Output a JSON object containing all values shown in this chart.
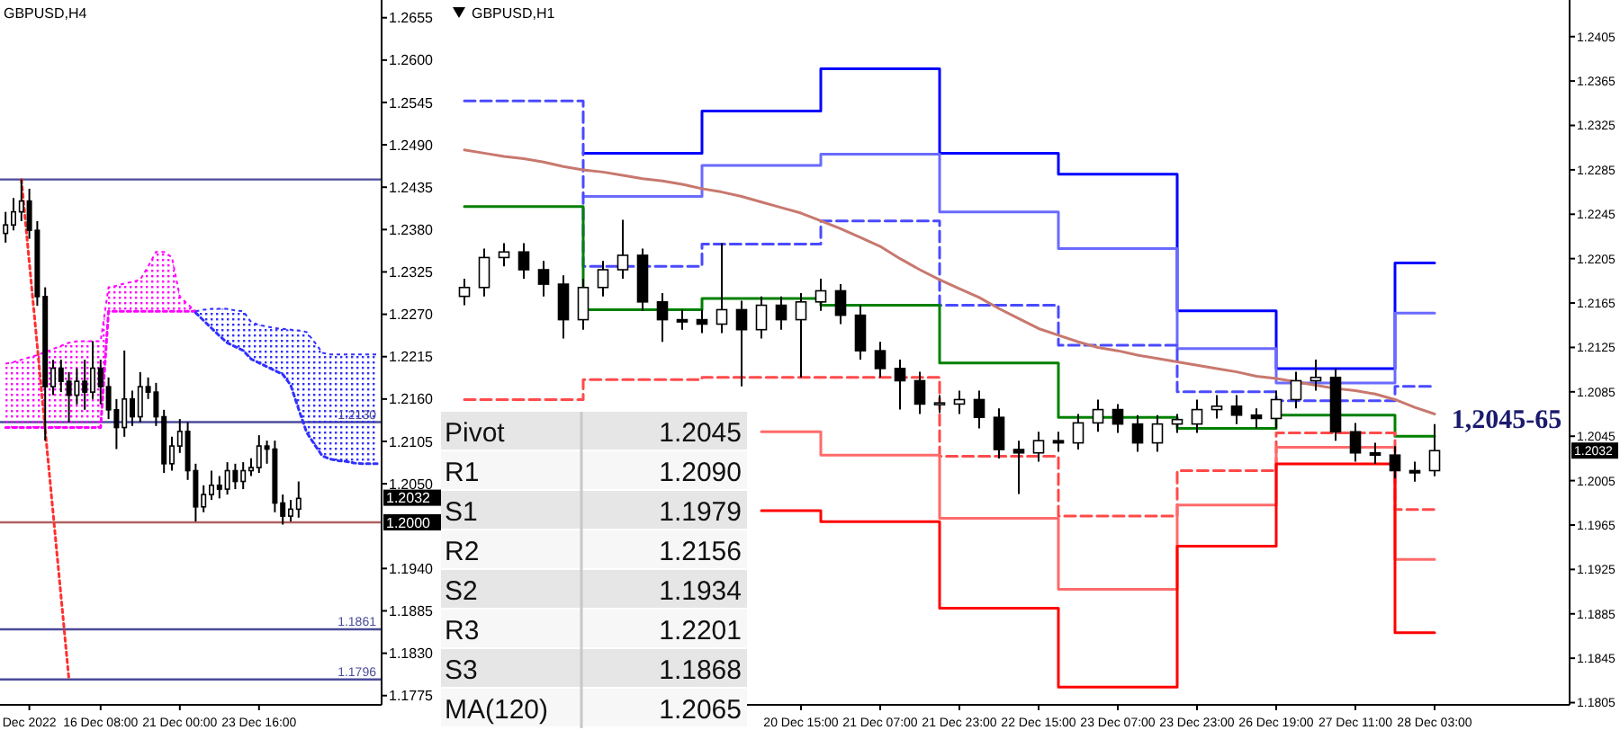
{
  "chart_data": [
    {
      "type": "candlestick",
      "title": "GBPUSD,H4",
      "ylim": [
        1.1763,
        1.2678
      ],
      "categories": [
        null,
        null,
        null,
        "Dec 2022",
        null,
        null,
        null,
        null,
        null,
        null,
        null,
        null,
        "16 Dec 08:00",
        null,
        null,
        null,
        null,
        null,
        null,
        null,
        null,
        null,
        "21 Dec 00:00",
        null,
        null,
        null,
        null,
        null,
        null,
        null,
        null,
        null,
        "23 Dec 16:00",
        null,
        null,
        null,
        null,
        null,
        null,
        null,
        null,
        null,
        null,
        null,
        null,
        null,
        null,
        null
      ],
      "yticks": [
        1.2655,
        {
          "value": 1.26,
          "label": "1.2600"
        },
        1.2545,
        {
          "value": 1.249,
          "label": "1.2490"
        },
        1.2435,
        {
          "value": 1.238,
          "label": "1.2380"
        },
        1.2325,
        {
          "value": 1.227,
          "label": "1.2270"
        },
        1.2215,
        {
          "value": 1.216,
          "label": "1.2160"
        },
        1.2105,
        {
          "value": 1.205,
          "label": "1.2050"
        },
        {
          "value": 1.194,
          "label": "1.1940"
        },
        1.1885,
        {
          "value": 1.183,
          "label": "1.1830"
        },
        1.1775
      ],
      "ohlc": [
        [
          1.2375,
          1.2403,
          1.2363,
          1.2386
        ],
        [
          1.2386,
          1.2421,
          1.2379,
          1.2403
        ],
        [
          1.2403,
          1.2445,
          1.2391,
          1.2417
        ],
        [
          1.2417,
          1.2433,
          1.2368,
          1.2379
        ],
        [
          1.2379,
          1.2391,
          1.2281,
          1.2293
        ],
        [
          1.2293,
          1.2305,
          1.2106,
          1.2176
        ],
        [
          1.2176,
          1.2211,
          1.2165,
          1.22
        ],
        [
          1.22,
          1.2211,
          1.2169,
          1.2183
        ],
        [
          1.2183,
          1.2195,
          1.213,
          1.2165
        ],
        [
          1.2165,
          1.22,
          1.2153,
          1.2183
        ],
        [
          1.2183,
          1.2211,
          1.2146,
          1.2169
        ],
        [
          1.2169,
          1.2235,
          1.216,
          1.22
        ],
        [
          1.22,
          1.2211,
          1.2153,
          1.2176
        ],
        [
          1.2176,
          1.2188,
          1.2134,
          1.2146
        ],
        [
          1.2146,
          1.216,
          1.2095,
          1.2123
        ],
        [
          1.2123,
          1.2223,
          1.2111,
          1.216
        ],
        [
          1.216,
          1.2171,
          1.2125,
          1.2137
        ],
        [
          1.2137,
          1.2195,
          1.213,
          1.2176
        ],
        [
          1.2176,
          1.2188,
          1.216,
          1.2169
        ],
        [
          1.2169,
          1.2181,
          1.2125,
          1.2137
        ],
        [
          1.2137,
          1.2146,
          1.2064,
          1.2076
        ],
        [
          1.2076,
          1.2111,
          1.2067,
          1.2099
        ],
        [
          1.2099,
          1.2134,
          1.209,
          1.2118
        ],
        [
          1.2118,
          1.213,
          1.2055,
          1.2067
        ],
        [
          1.2067,
          1.2076,
          1.2001,
          1.202
        ],
        [
          1.202,
          1.2048,
          1.2013,
          1.2036
        ],
        [
          1.2036,
          1.2067,
          1.2029,
          1.2048
        ],
        [
          1.2048,
          1.206,
          1.2031,
          1.2043
        ],
        [
          1.2043,
          1.2078,
          1.2036,
          1.2067
        ],
        [
          1.2067,
          1.2076,
          1.2043,
          1.2053
        ],
        [
          1.2053,
          1.2078,
          1.2043,
          1.2067
        ],
        [
          1.2067,
          1.2083,
          1.206,
          1.2071
        ],
        [
          1.2071,
          1.2113,
          1.2064,
          1.2099
        ],
        [
          1.2099,
          1.2106,
          1.2076,
          1.2095
        ],
        [
          1.2095,
          1.2106,
          1.2013,
          1.2025
        ],
        [
          1.2025,
          1.2036,
          1.1997,
          1.2008
        ],
        [
          1.2008,
          1.2029,
          1.2001,
          1.2017
        ],
        [
          1.2017,
          1.2053,
          1.2006,
          1.2031
        ],
        null,
        null,
        null,
        null,
        null,
        null,
        null,
        null,
        null,
        null
      ],
      "series": [
        {
          "type": "area",
          "color": "#ff00ff",
          "line_style": "dotted",
          "values": [
            1.2206,
            1.2208,
            1.2211,
            1.2214,
            1.2217,
            1.2221,
            1.2225,
            1.2229,
            1.2233,
            1.2235,
            1.2235,
            1.2235,
            1.2235,
            1.2305,
            1.2307,
            1.231,
            1.2312,
            1.2315,
            1.2332,
            1.2351,
            1.2351,
            1.2344,
            1.2293,
            1.2283,
            1.2274,
            null,
            null,
            null,
            null,
            null,
            null,
            null,
            null,
            null,
            null,
            null,
            null,
            null,
            null,
            null,
            null,
            null,
            null,
            null,
            null,
            null,
            null,
            null
          ]
        },
        {
          "type": "line",
          "color": "#ff00ff",
          "line_style": "dotted",
          "values": [
            1.2123,
            1.2123,
            1.2123,
            1.2123,
            1.2123,
            1.2123,
            1.2123,
            1.2123,
            1.2123,
            1.2123,
            1.2123,
            1.2123,
            1.2123,
            1.2274,
            1.2274,
            1.2274,
            1.2274,
            1.2274,
            1.2274,
            1.2274,
            1.2274,
            1.2274,
            1.2274,
            1.2274,
            1.2274,
            null,
            null,
            null,
            null,
            null,
            null,
            null,
            null,
            null,
            null,
            null,
            null,
            null,
            null,
            null,
            null,
            null,
            null,
            null,
            null,
            null,
            null,
            null
          ]
        },
        {
          "type": "area",
          "color": "#3030ff",
          "line_style": "dotted",
          "values": [
            null,
            null,
            null,
            null,
            null,
            null,
            null,
            null,
            null,
            null,
            null,
            null,
            null,
            null,
            null,
            null,
            null,
            null,
            null,
            null,
            null,
            null,
            null,
            null,
            1.2274,
            1.2276,
            1.2277,
            1.2277,
            1.2277,
            1.2275,
            1.2274,
            1.226,
            1.2256,
            1.2254,
            1.2252,
            1.2251,
            1.225,
            1.2249,
            1.2247,
            1.2234,
            1.222,
            1.2218,
            1.2218,
            1.2218,
            1.2218,
            1.2218,
            1.2218,
            1.2218
          ]
        },
        {
          "type": "line",
          "color": "#3030ff",
          "line_style": "dotted",
          "values": [
            null,
            null,
            null,
            null,
            null,
            null,
            null,
            null,
            null,
            null,
            null,
            null,
            null,
            null,
            null,
            null,
            null,
            null,
            null,
            null,
            null,
            null,
            null,
            null,
            1.2272,
            1.2262,
            1.2252,
            1.2242,
            1.2233,
            1.2228,
            1.2223,
            1.2212,
            1.2207,
            1.2202,
            1.2197,
            1.2192,
            1.2178,
            1.2147,
            1.2117,
            1.2101,
            1.2086,
            1.2082,
            1.208,
            1.2079,
            1.2077,
            1.2076,
            1.2076,
            1.2076
          ]
        },
        {
          "type": "line",
          "color": "#ff3030",
          "line_style": "dotted",
          "values": [
            null,
            null,
            1.2445,
            1.2337,
            1.2229,
            1.212,
            1.2012,
            1.1904,
            1.1796,
            null,
            null,
            null,
            null,
            null,
            null,
            null,
            null,
            null,
            null,
            null,
            null,
            null,
            null,
            null,
            null,
            null,
            null,
            null,
            null,
            null,
            null,
            null,
            null,
            null,
            null,
            null,
            null,
            null,
            null,
            null,
            null,
            null,
            null,
            null,
            null,
            null,
            null,
            null
          ]
        }
      ],
      "ref_lines": [
        {
          "axis": "y",
          "value": 1.2445,
          "color": "#4b4b9a"
        },
        {
          "axis": "y",
          "value": 1.213,
          "label": "1.2130",
          "color": "#4b4b9a"
        },
        {
          "axis": "y",
          "value": 1.2,
          "color": "#b06060"
        },
        {
          "axis": "y",
          "value": 1.1861,
          "label": "1.1861",
          "color": "#4b4b9a"
        },
        {
          "axis": "y",
          "value": 1.1796,
          "label": "1.1796",
          "color": "#4b4b9a"
        }
      ],
      "annotations": [
        "1.2032",
        "1.2000"
      ]
    },
    {
      "type": "candlestick",
      "title": "GBPUSD,H1",
      "ylim": [
        1.1803,
        1.2438
      ],
      "categories": [
        null,
        null,
        null,
        null,
        null,
        null,
        null,
        null,
        null,
        null,
        null,
        null,
        null,
        null,
        null,
        null,
        null,
        "20 Dec 15:00",
        null,
        null,
        null,
        "21 Dec 07:00",
        null,
        null,
        null,
        "21 Dec 23:00",
        null,
        null,
        null,
        "22 Dec 15:00",
        null,
        null,
        null,
        "23 Dec 07:00",
        null,
        null,
        null,
        "23 Dec 23:00",
        null,
        null,
        null,
        "26 Dec 19:00",
        null,
        null,
        null,
        "27 Dec 11:00",
        null,
        null,
        null,
        "28 Dec 03:00"
      ],
      "yticks": [
        1.2405,
        1.2365,
        1.2325,
        1.2285,
        1.2245,
        1.2205,
        1.2165,
        1.2125,
        1.2085,
        1.2045,
        1.2005,
        1.1965,
        1.1925,
        1.1885,
        1.1845,
        1.1805
      ],
      "ohlc": [
        [
          1.2171,
          1.2187,
          1.2163,
          1.2179
        ],
        [
          1.2179,
          1.2214,
          1.2171,
          1.2206
        ],
        [
          1.2206,
          1.2219,
          1.2198,
          1.2211
        ],
        [
          1.2211,
          1.2219,
          1.2187,
          1.2195
        ],
        [
          1.2195,
          1.2203,
          1.2171,
          1.2182
        ],
        [
          1.2182,
          1.219,
          1.2133,
          1.215
        ],
        [
          1.215,
          1.2187,
          1.2141,
          1.2179
        ],
        [
          1.2179,
          1.2203,
          1.2171,
          1.2195
        ],
        [
          1.2195,
          1.224,
          1.2187,
          1.2208
        ],
        [
          1.2208,
          1.2214,
          1.2158,
          1.2166
        ],
        [
          1.2166,
          1.2174,
          1.213,
          1.215
        ],
        [
          1.215,
          1.2159,
          1.2141,
          1.2148
        ],
        [
          1.215,
          1.2159,
          1.2138,
          1.2146
        ],
        [
          1.2146,
          1.2219,
          1.2138,
          1.2159
        ],
        [
          1.2159,
          1.2167,
          1.209,
          1.2141
        ],
        [
          1.2141,
          1.2171,
          1.2133,
          1.2163
        ],
        [
          1.2163,
          1.2171,
          1.2141,
          1.215
        ],
        [
          1.215,
          1.2174,
          1.2098,
          1.2166
        ],
        [
          1.2166,
          1.2187,
          1.2158,
          1.2176
        ],
        [
          1.2176,
          1.2182,
          1.2146,
          1.2154
        ],
        [
          1.2154,
          1.2163,
          1.2114,
          1.2122
        ],
        [
          1.2122,
          1.213,
          1.2098,
          1.2106
        ],
        [
          1.2106,
          1.2114,
          1.2069,
          1.2095
        ],
        [
          1.2095,
          1.2103,
          1.2065,
          1.2074
        ],
        [
          1.2074,
          1.2082,
          1.2066,
          1.2075
        ],
        [
          1.2074,
          1.2086,
          1.2065,
          1.2078
        ],
        [
          1.2078,
          1.2086,
          1.2052,
          1.2062
        ],
        [
          1.2062,
          1.207,
          1.2025,
          1.2033
        ],
        [
          1.2033,
          1.2041,
          1.1993,
          1.203
        ],
        [
          1.203,
          1.2049,
          1.2022,
          1.2041
        ],
        [
          1.2041,
          1.2049,
          1.2031,
          1.2039
        ],
        [
          1.2039,
          1.2065,
          1.2033,
          1.2057
        ],
        [
          1.2057,
          1.2078,
          1.2049,
          1.2069
        ],
        [
          1.2069,
          1.2074,
          1.2048,
          1.2056
        ],
        [
          1.2056,
          1.2064,
          1.2031,
          1.2039
        ],
        [
          1.2039,
          1.2064,
          1.2031,
          1.2056
        ],
        [
          1.2056,
          1.2065,
          1.2048,
          1.206
        ],
        [
          1.2056,
          1.2078,
          1.2048,
          1.2069
        ],
        [
          1.2069,
          1.2082,
          1.2061,
          1.2072
        ],
        [
          1.2072,
          1.2082,
          1.2056,
          1.2064
        ],
        [
          1.2064,
          1.207,
          1.2052,
          1.2061
        ],
        [
          1.2061,
          1.2086,
          1.2052,
          1.2078
        ],
        [
          1.2078,
          1.2103,
          1.207,
          1.2095
        ],
        [
          1.2095,
          1.2114,
          1.2086,
          1.2098
        ],
        [
          1.2098,
          1.2106,
          1.2041,
          1.2049
        ],
        [
          1.2049,
          1.2057,
          1.2022,
          1.203
        ],
        [
          1.203,
          1.2039,
          1.202,
          1.2028
        ],
        [
          1.2028,
          1.2036,
          1.2007,
          1.2014
        ],
        [
          1.2014,
          1.2022,
          1.2004,
          1.2012
        ],
        [
          1.2014,
          1.2056,
          1.2009,
          1.2032
        ]
      ],
      "series": [
        {
          "type": "step",
          "color": "#0000ff",
          "values": [
            null,
            null,
            null,
            null,
            null,
            null,
            1.23,
            1.23,
            1.23,
            1.23,
            1.23,
            1.23,
            1.2338,
            1.2338,
            1.2338,
            1.2338,
            1.2338,
            1.2338,
            1.2376,
            1.2376,
            1.2376,
            1.2376,
            1.2376,
            1.2376,
            1.23,
            1.23,
            1.23,
            1.23,
            1.23,
            1.23,
            1.2281,
            1.2281,
            1.2281,
            1.2281,
            1.2281,
            1.2281,
            1.2158,
            1.2158,
            1.2158,
            1.2158,
            1.2158,
            1.2106,
            1.2106,
            1.2106,
            1.2106,
            1.2106,
            1.2106,
            1.2201,
            1.2201,
            1.2201
          ]
        },
        {
          "type": "step",
          "color": "#6a6aff",
          "values": [
            null,
            null,
            null,
            null,
            null,
            null,
            1.2261,
            1.2261,
            1.2261,
            1.2261,
            1.2261,
            1.2261,
            1.2289,
            1.2289,
            1.2289,
            1.2289,
            1.2289,
            1.2289,
            1.2299,
            1.2299,
            1.2299,
            1.2299,
            1.2299,
            1.2299,
            1.2247,
            1.2247,
            1.2247,
            1.2247,
            1.2247,
            1.2247,
            1.2214,
            1.2214,
            1.2214,
            1.2214,
            1.2214,
            1.2214,
            1.2124,
            1.2124,
            1.2124,
            1.2124,
            1.2124,
            1.2093,
            1.2093,
            1.2093,
            1.2093,
            1.2093,
            1.2093,
            1.2156,
            1.2156,
            1.2156
          ]
        },
        {
          "type": "step",
          "color": "#4a4aff",
          "line_style": "dashed",
          "values": [
            1.2347,
            1.2347,
            1.2347,
            1.2347,
            1.2347,
            1.2347,
            1.2198,
            1.2198,
            1.2198,
            1.2198,
            1.2198,
            1.2198,
            1.2218,
            1.2218,
            1.2218,
            1.2218,
            1.2218,
            1.2218,
            1.2239,
            1.2239,
            1.2239,
            1.2239,
            1.2239,
            1.2239,
            1.2163,
            1.2163,
            1.2163,
            1.2163,
            1.2163,
            1.2163,
            1.2127,
            1.2127,
            1.2127,
            1.2127,
            1.2127,
            1.2127,
            1.2085,
            1.2085,
            1.2085,
            1.2085,
            1.2085,
            1.2077,
            1.2077,
            1.2077,
            1.2077,
            1.2077,
            1.2077,
            1.209,
            1.209,
            1.209
          ]
        },
        {
          "type": "step",
          "color": "#008000",
          "values": [
            1.2252,
            1.2252,
            1.2252,
            1.2252,
            1.2252,
            1.2252,
            1.2159,
            1.2159,
            1.2159,
            1.2159,
            1.2159,
            1.2159,
            1.2169,
            1.2169,
            1.2169,
            1.2169,
            1.2169,
            1.2169,
            1.2163,
            1.2163,
            1.2163,
            1.2163,
            1.2163,
            1.2163,
            1.2111,
            1.2111,
            1.2111,
            1.2111,
            1.2111,
            1.2111,
            1.2062,
            1.2062,
            1.2062,
            1.2062,
            1.2062,
            1.2062,
            1.2052,
            1.2052,
            1.2052,
            1.2052,
            1.2052,
            1.2064,
            1.2064,
            1.2064,
            1.2064,
            1.2064,
            1.2064,
            1.2045,
            1.2045,
            1.2045
          ]
        },
        {
          "type": "step",
          "color": "#ff4a4a",
          "line_style": "dashed",
          "values": [
            1.2078,
            1.2078,
            1.2078,
            1.2078,
            1.2078,
            1.2078,
            1.2096,
            1.2096,
            1.2096,
            1.2096,
            1.2096,
            1.2096,
            1.2098,
            1.2098,
            1.2098,
            1.2098,
            1.2098,
            1.2098,
            1.2098,
            1.2098,
            1.2098,
            1.2098,
            1.2098,
            1.2098,
            1.2027,
            1.2027,
            1.2027,
            1.2027,
            1.2027,
            1.2027,
            1.1973,
            1.1973,
            1.1973,
            1.1973,
            1.1973,
            1.1973,
            1.2014,
            1.2014,
            1.2014,
            1.2014,
            1.2014,
            1.2048,
            1.2048,
            1.2048,
            1.2048,
            1.2048,
            1.2048,
            1.1979,
            1.1979,
            1.1979
          ]
        },
        {
          "type": "step",
          "color": "#ff6a6a",
          "values": [
            null,
            null,
            null,
            null,
            null,
            null,
            null,
            null,
            null,
            null,
            null,
            null,
            null,
            null,
            null,
            1.2049,
            1.2049,
            1.2049,
            1.2028,
            1.2028,
            1.2028,
            1.2028,
            1.2028,
            1.2028,
            1.1971,
            1.1971,
            1.1971,
            1.1971,
            1.1971,
            1.1971,
            1.1907,
            1.1907,
            1.1907,
            1.1907,
            1.1907,
            1.1907,
            1.1983,
            1.1983,
            1.1983,
            1.1983,
            1.1983,
            1.2035,
            1.2035,
            1.2035,
            1.2035,
            1.2035,
            1.2035,
            1.1934,
            1.1934,
            1.1934
          ]
        },
        {
          "type": "step",
          "color": "#ff0000",
          "values": [
            null,
            null,
            null,
            null,
            null,
            null,
            null,
            null,
            null,
            null,
            null,
            null,
            null,
            null,
            null,
            1.1978,
            1.1978,
            1.1978,
            1.1968,
            1.1968,
            1.1968,
            1.1968,
            1.1968,
            1.1968,
            1.189,
            1.189,
            1.189,
            1.189,
            1.189,
            1.189,
            1.1819,
            1.1819,
            1.1819,
            1.1819,
            1.1819,
            1.1819,
            1.1946,
            1.1946,
            1.1946,
            1.1946,
            1.1946,
            1.202,
            1.202,
            1.202,
            1.202,
            1.202,
            1.202,
            1.1868,
            1.1868,
            1.1868
          ]
        },
        {
          "type": "line",
          "color": "#c8786e",
          "values": [
            1.2303,
            1.23,
            1.2297,
            1.2295,
            1.2292,
            1.2288,
            1.2285,
            1.2283,
            1.228,
            1.2277,
            1.2275,
            1.2272,
            1.2268,
            1.2265,
            1.2261,
            1.2256,
            1.2251,
            1.2246,
            1.2239,
            1.2232,
            1.2224,
            1.2216,
            1.2205,
            1.2195,
            1.2186,
            1.2178,
            1.217,
            1.216,
            1.2151,
            1.2142,
            1.2136,
            1.213,
            1.2125,
            1.2122,
            1.2118,
            1.2115,
            1.2112,
            1.2109,
            1.2106,
            1.2103,
            1.2099,
            1.2097,
            1.2094,
            1.2091,
            1.2088,
            1.2086,
            1.2083,
            1.2078,
            1.2071,
            1.2065
          ]
        }
      ],
      "annotations": [
        "1.2032",
        "1,2045-65",
        "Pivot",
        "1.2045",
        "R1",
        "1.2090",
        "S1",
        "1.1979",
        "R2",
        "1.2156",
        "S2",
        "1.1934",
        "R3",
        "1.2201",
        "S3",
        "1.1868",
        "MA(120)",
        "1.2065"
      ]
    }
  ]
}
